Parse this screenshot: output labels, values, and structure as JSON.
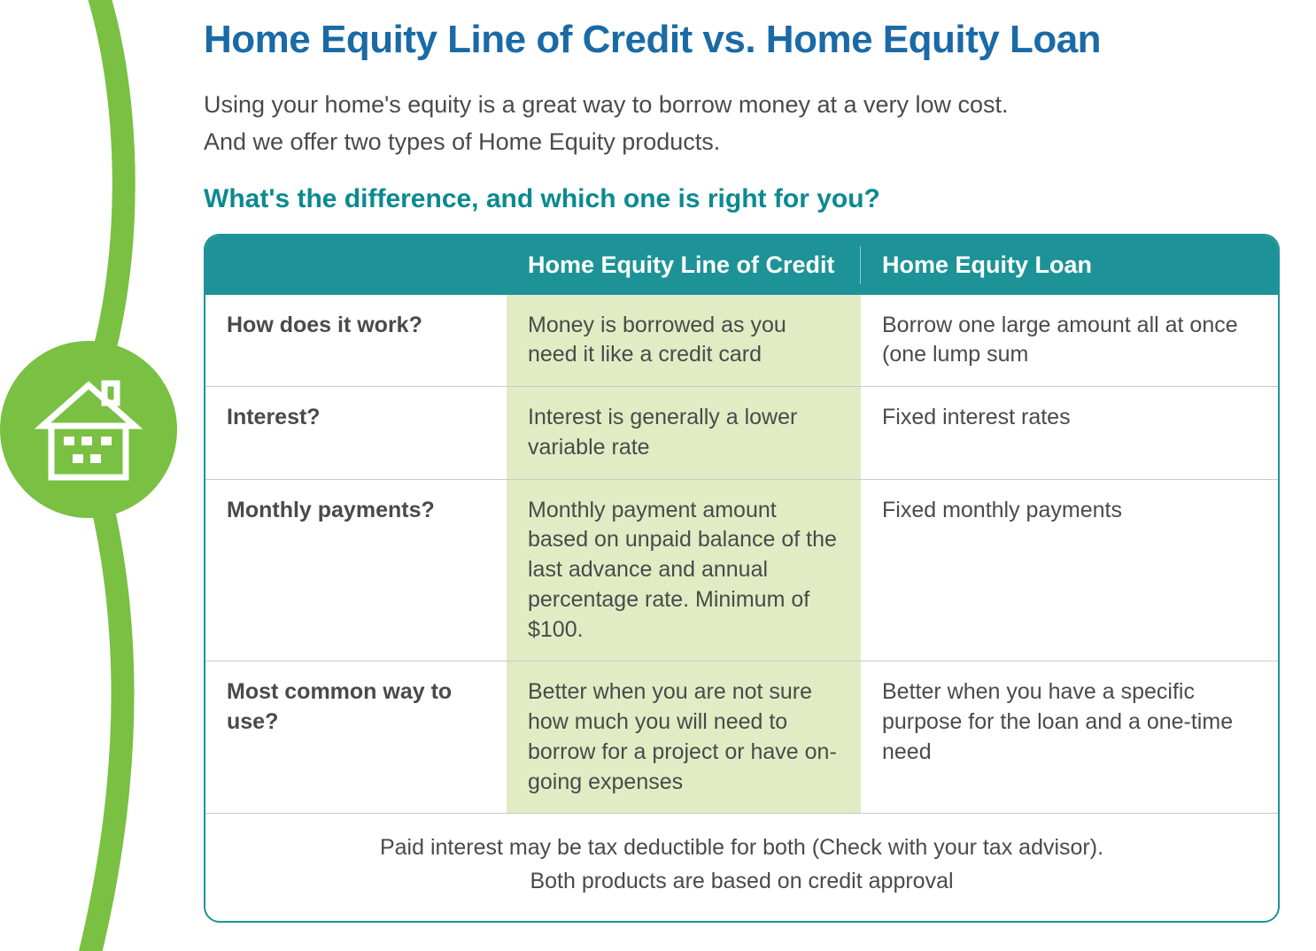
{
  "colors": {
    "title_blue": "#1a6aa6",
    "sub_teal": "#0b8a8f",
    "header_bg": "#1d9397",
    "highlight_bg": "#e1ecc4",
    "border": "#1d9397",
    "decor_green": "#79c043",
    "text": "#4a4a4a"
  },
  "title": "Home Equity Line of Credit vs. Home Equity Loan",
  "intro_line1": "Using your home's equity is a great way to borrow money at a very low cost.",
  "intro_line2": "And we offer two types of Home Equity products.",
  "subheading": "What's the difference, and which one is right for you?",
  "table": {
    "headers": {
      "blank": "",
      "heloc": "Home Equity Line of Credit",
      "heloan": "Home Equity Loan"
    },
    "rows": [
      {
        "label": "How does it work?",
        "heloc": "Money is borrowed as you need it like a credit card",
        "heloan": "Borrow one large amount all at once (one lump sum"
      },
      {
        "label": "Interest?",
        "heloc": "Interest is generally a lower variable rate",
        "heloan": "Fixed interest rates"
      },
      {
        "label": "Monthly payments?",
        "heloc": "Monthly payment amount based on unpaid balance of the last advance and annual percentage rate.  Minimum of $100.",
        "heloan": "Fixed monthly payments"
      },
      {
        "label": "Most common way to use?",
        "heloc": "Better when you are not sure how much you will need to borrow for a project or have on-going expenses",
        "heloan": "Better when you have a specific purpose for the loan and a one-time need"
      }
    ],
    "footer_line1": "Paid interest may be tax deductible for both (Check with your tax advisor).",
    "footer_line2": "Both products are based on credit approval"
  }
}
